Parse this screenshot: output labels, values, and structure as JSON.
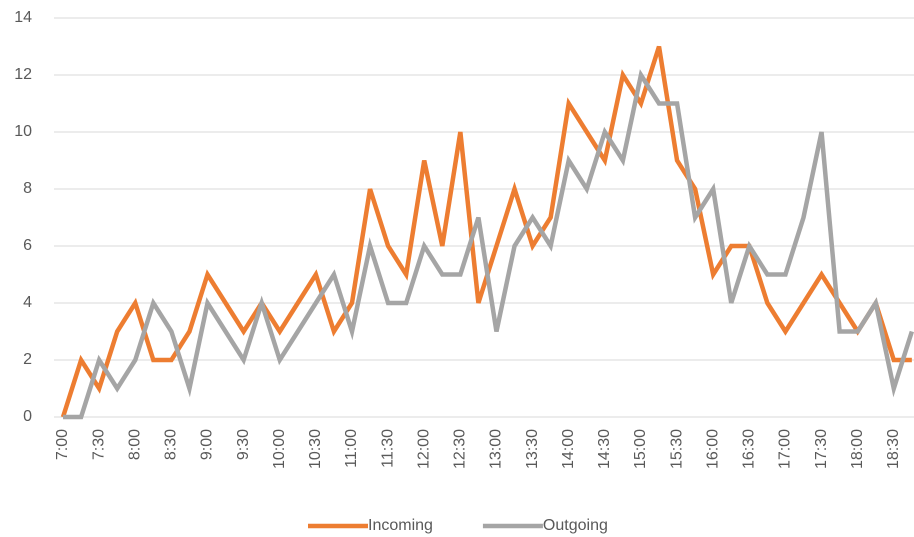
{
  "chart_data": {
    "type": "line",
    "categories": [
      "7:00",
      null,
      "7:30",
      null,
      "8:00",
      null,
      "8:30",
      null,
      "9:00",
      null,
      "9:30",
      null,
      "10:00",
      null,
      "10:30",
      null,
      "11:00",
      null,
      "11:30",
      null,
      "12:00",
      null,
      "12:30",
      null,
      "13:00",
      null,
      "13:30",
      null,
      "14:00",
      null,
      "14:30",
      null,
      "15:00",
      null,
      "15:30",
      null,
      "16:00",
      null,
      "16:30",
      null,
      "17:00",
      null,
      "17:30",
      null,
      "18:00",
      null,
      "18:30",
      null
    ],
    "series": [
      {
        "name": "Incoming",
        "color": "#ed7d31",
        "values": [
          0,
          2,
          1,
          3,
          4,
          2,
          2,
          3,
          5,
          4,
          3,
          4,
          3,
          4,
          5,
          3,
          4,
          8,
          6,
          5,
          9,
          6,
          10,
          4,
          6,
          8,
          6,
          7,
          11,
          10,
          9,
          12,
          11,
          13,
          9,
          8,
          5,
          6,
          6,
          4,
          3,
          4,
          5,
          4,
          3,
          4,
          2,
          2
        ]
      },
      {
        "name": "Outgoing",
        "color": "#a5a5a5",
        "values": [
          0,
          0,
          2,
          1,
          2,
          4,
          3,
          1,
          4,
          3,
          2,
          4,
          2,
          3,
          4,
          5,
          3,
          6,
          4,
          4,
          6,
          5,
          5,
          7,
          3,
          6,
          7,
          6,
          9,
          8,
          10,
          9,
          12,
          11,
          11,
          7,
          8,
          4,
          6,
          5,
          5,
          7,
          10,
          3,
          3,
          4,
          1,
          3
        ]
      }
    ],
    "ylim": [
      0,
      14
    ],
    "yticks": [
      0,
      2,
      4,
      6,
      8,
      10,
      12,
      14
    ],
    "grid": true,
    "legend": "bottom"
  }
}
